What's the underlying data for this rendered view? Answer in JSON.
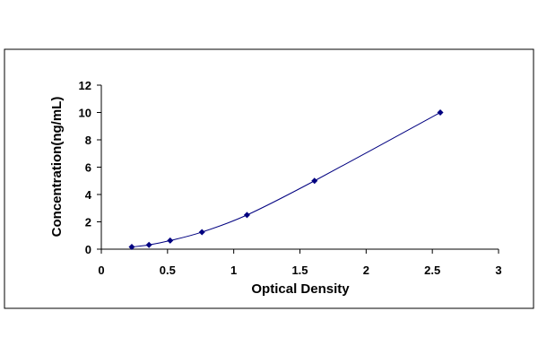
{
  "chart_data": {
    "type": "scatter",
    "title": "",
    "xlabel": "Optical Density",
    "ylabel": "Concentration(ng/mL)",
    "xlim": [
      0,
      3
    ],
    "ylim": [
      0,
      12
    ],
    "x_ticks": [
      0,
      0.5,
      1,
      1.5,
      2,
      2.5,
      3
    ],
    "x_tick_labels": [
      "0",
      "0.5",
      "1",
      "1.5",
      "2",
      "2.5",
      "3"
    ],
    "y_ticks": [
      0,
      2,
      4,
      6,
      8,
      10,
      12
    ],
    "y_tick_labels": [
      "0",
      "2",
      "4",
      "6",
      "8",
      "10",
      "12"
    ],
    "grid": false,
    "legend": "none",
    "trendline": "smooth curve through points",
    "series": [
      {
        "x": [
          0.23,
          0.36,
          0.52,
          0.76,
          1.1,
          1.61,
          2.56
        ],
        "y": [
          0.16,
          0.31,
          0.63,
          1.25,
          2.5,
          5,
          10
        ]
      }
    ],
    "colors": {
      "marker": "#000080",
      "line": "#000080",
      "axis": "#000000",
      "frame": "#000000"
    }
  }
}
